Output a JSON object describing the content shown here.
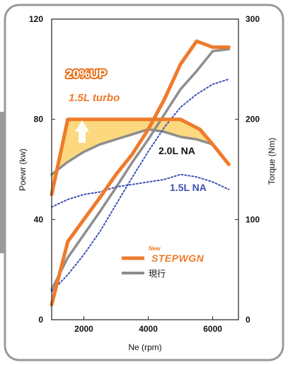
{
  "chart_data": {
    "type": "line",
    "xlabel": "Ne (rpm)",
    "ylabel_left": "Poewr (kw)",
    "ylabel_right": "Torque (Nm)",
    "xlim": [
      1000,
      6800
    ],
    "ylim_left": [
      0,
      120
    ],
    "ylim_right": [
      0,
      300
    ],
    "x_ticks": [
      "2000",
      "4000",
      "6000"
    ],
    "x_tick_values": [
      2000,
      4000,
      6000
    ],
    "y_left_ticks": [
      "0",
      "40",
      "80",
      "120"
    ],
    "y_left_tick_values": [
      0,
      40,
      80,
      120
    ],
    "y_right_ticks": [
      "0",
      "100",
      "200",
      "300"
    ],
    "y_right_tick_values": [
      0,
      100,
      200,
      300
    ],
    "grid": false,
    "colors": {
      "new": "#ee7b2c",
      "current": "#8e8e8e",
      "na": "#3b4fb4",
      "fill": "#fcd267",
      "frame": "#9a9a9a",
      "band": "#9b9b9b"
    },
    "series": [
      {
        "name": "1.5L turbo",
        "axis": "left",
        "style": "new",
        "x": [
          1000,
          1500,
          2000,
          3000,
          4000,
          5000,
          5600,
          6000,
          6500
        ],
        "y": [
          50,
          80,
          80,
          80,
          80,
          80,
          76,
          70,
          62
        ]
      },
      {
        "name": "1.5L turbo",
        "axis": "right",
        "style": "new",
        "x": [
          1000,
          1500,
          2000,
          2500,
          3000,
          3500,
          4000,
          4500,
          5000,
          5500,
          6000,
          6500
        ],
        "y": [
          15,
          78,
          100,
          122,
          145,
          165,
          190,
          220,
          255,
          278,
          272,
          272
        ]
      },
      {
        "name": "2.0L NA",
        "axis": "left",
        "style": "current",
        "x": [
          1000,
          1500,
          2000,
          2500,
          3000,
          3500,
          4000,
          4500,
          5000,
          5500,
          6000
        ],
        "y": [
          58,
          63,
          67,
          70,
          72,
          74,
          76,
          75,
          73,
          72,
          70
        ]
      },
      {
        "name": "2.0L NA",
        "axis": "right",
        "style": "current",
        "x": [
          1000,
          1500,
          2000,
          2500,
          3000,
          3500,
          4000,
          4500,
          5000,
          5500,
          6000,
          6500
        ],
        "y": [
          30,
          62,
          85,
          108,
          132,
          157,
          180,
          205,
          230,
          248,
          268,
          270
        ]
      },
      {
        "name": "1.5L NA",
        "axis": "left",
        "style": "na",
        "x": [
          1000,
          1500,
          2000,
          2500,
          3000,
          3500,
          4000,
          4500,
          5000,
          5500,
          6000,
          6500
        ],
        "y": [
          45,
          48,
          50,
          51,
          53,
          54,
          55,
          56,
          58,
          57,
          55,
          52
        ]
      },
      {
        "name": "1.5L NA",
        "axis": "right",
        "style": "na",
        "x": [
          1000,
          1500,
          2000,
          2500,
          3000,
          3500,
          4000,
          4500,
          5000,
          5500,
          6000,
          6500
        ],
        "y": [
          28,
          45,
          65,
          88,
          115,
          142,
          168,
          192,
          212,
          225,
          235,
          240
        ]
      }
    ],
    "annotations": {
      "up": "20%UP",
      "turbo": "1.5L turbo",
      "na20": "2.0L NA",
      "na15": "1.5L NA"
    },
    "legend": {
      "position": "bottom-right",
      "new_tag": "New",
      "new_label": "STEPWGN",
      "current_label": "現行"
    }
  }
}
